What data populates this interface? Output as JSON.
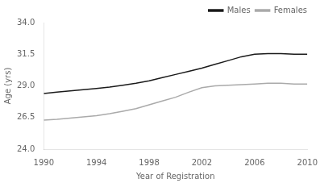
{
  "chart_data": {
    "type": "line",
    "x": [
      1990,
      1991,
      1992,
      1993,
      1994,
      1995,
      1996,
      1997,
      1998,
      1999,
      2000,
      2001,
      2002,
      2003,
      2004,
      2005,
      2006,
      2007,
      2008,
      2009,
      2010
    ],
    "series": [
      {
        "name": "Males",
        "color": "#1a1a1a",
        "values": [
          28.4,
          28.5,
          28.6,
          28.7,
          28.8,
          28.9,
          29.05,
          29.2,
          29.4,
          29.65,
          29.9,
          30.15,
          30.4,
          30.7,
          31.0,
          31.3,
          31.5,
          31.55,
          31.55,
          31.5,
          31.5
        ]
      },
      {
        "name": "Females",
        "color": "#aaaaaa",
        "values": [
          26.3,
          26.35,
          26.45,
          26.55,
          26.65,
          26.8,
          27.0,
          27.2,
          27.5,
          27.8,
          28.1,
          28.5,
          28.85,
          29.0,
          29.05,
          29.1,
          29.15,
          29.2,
          29.2,
          29.15,
          29.15
        ]
      }
    ],
    "xlabel": "Year of Registration",
    "ylabel": "Age (yrs)",
    "xlim": [
      1990,
      2010
    ],
    "ylim": [
      24.0,
      34.0
    ],
    "xticks": [
      1990,
      1994,
      1998,
      2002,
      2006,
      2010
    ],
    "yticks": [
      {
        "value": 24.0,
        "label": "24.0"
      },
      26.5,
      {
        "value": 29.0,
        "label": "29.0"
      },
      31.5,
      {
        "value": 34.0,
        "label": "34.0"
      }
    ],
    "legend": "upper right",
    "grid": false
  }
}
